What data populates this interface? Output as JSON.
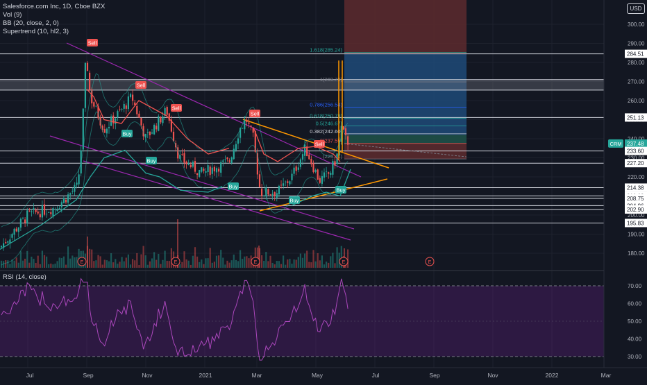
{
  "header": {
    "symbol_line": "Salesforce.com Inc, 1D, Cboe BZX",
    "indicators": [
      "Vol (9)",
      "BB (20, close, 2, 0)",
      "Supertrend (10, hl2, 3)"
    ],
    "currency_button": "USD"
  },
  "price_axis": {
    "ticks": [
      "300.00",
      "290.00",
      "280.00",
      "270.00",
      "260.00",
      "250.00",
      "240.00",
      "230.00",
      "220.00",
      "210.00",
      "200.00",
      "190.00",
      "180.00"
    ],
    "line_labels": [
      {
        "value": "284.51",
        "kind": "level"
      },
      {
        "value": "251.13",
        "kind": "level"
      },
      {
        "value": "237.48",
        "kind": "current",
        "tag": "CRM"
      },
      {
        "value": "233.60",
        "kind": "level"
      },
      {
        "value": "227.20",
        "kind": "level"
      },
      {
        "value": "214.38",
        "kind": "level"
      },
      {
        "value": "210.03",
        "kind": "level"
      },
      {
        "value": "208.75",
        "kind": "level"
      },
      {
        "value": "204.96",
        "kind": "level"
      },
      {
        "value": "202.90",
        "kind": "level"
      },
      {
        "value": "195.83",
        "kind": "level"
      }
    ]
  },
  "rsi": {
    "label": "RSI (14, close)",
    "ticks": [
      "70.00",
      "60.00",
      "50.00",
      "40.00",
      "30.00"
    ]
  },
  "time_axis": [
    "Jul",
    "Sep",
    "Nov",
    "2021",
    "Mar",
    "May",
    "Jul",
    "Sep",
    "Nov",
    "2022",
    "Mar"
  ],
  "fibonacci": [
    "1.618(285.24)",
    "1(269.79)",
    "0.786(256.54)",
    "0.618(250.79)",
    "0.5(246.67)",
    "0.382(242.60)",
    "0(237.55)",
    "(229.41)"
  ],
  "signals": {
    "sell": "Sell",
    "buy": "Buy"
  },
  "earnings_marker": "E",
  "colors": {
    "background": "#131722",
    "up": "#26a69a",
    "down": "#ef5350",
    "rsi_line": "#ab47bc",
    "channel": "#9c27b0",
    "trendline": "#ff9800",
    "grid": "#1e222d"
  }
}
